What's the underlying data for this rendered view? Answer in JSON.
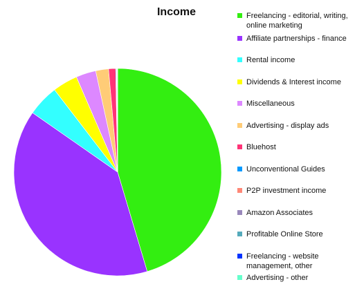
{
  "chart_data": {
    "type": "pie",
    "title": "Income",
    "categories": [
      "Freelancing - editorial, writing, online marketing",
      "Affiliate partnerships - finance",
      "Rental income",
      "Dividends & Interest income",
      "Miscellaneous",
      "Advertising - display ads",
      "Bluehost",
      "Unconventional Guides",
      "P2P investment income",
      "Amazon Associates",
      "Profitable Online Store",
      "Freelancing - website management, other",
      "Advertising - other"
    ],
    "values": [
      45.4,
      39.3,
      4.9,
      3.9,
      3.1,
      2.0,
      1.1,
      0.1,
      0.05,
      0.1,
      0.02,
      0.01,
      0.02
    ],
    "colors": [
      "#33ee11",
      "#9933ff",
      "#33ffff",
      "#ffff00",
      "#dd88ff",
      "#ffcc77",
      "#ff3377",
      "#0099ff",
      "#ff8877",
      "#9988bb",
      "#55aabb",
      "#0033ff",
      "#66ffcc"
    ]
  }
}
